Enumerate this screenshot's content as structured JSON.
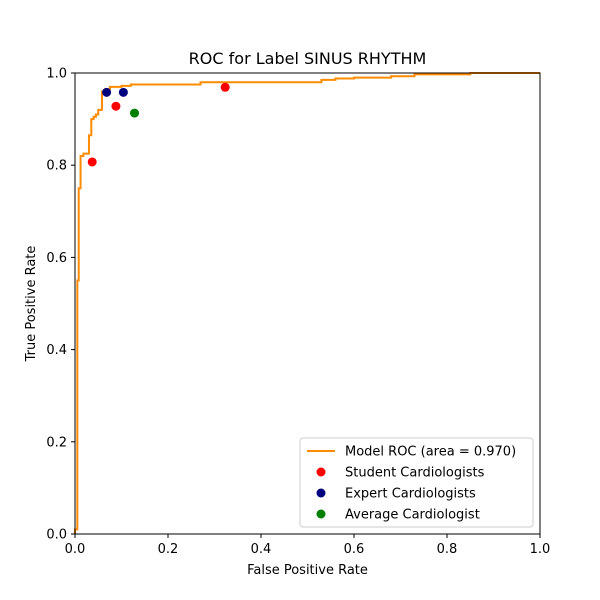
{
  "chart_data": {
    "type": "line",
    "title": "ROC for Label SINUS RHYTHM",
    "xlabel": "False Positive Rate",
    "ylabel": "True Positive Rate",
    "xlim": [
      0.0,
      1.0
    ],
    "ylim": [
      0.0,
      1.0
    ],
    "xticks": [
      "0.0",
      "0.2",
      "0.4",
      "0.6",
      "0.8",
      "1.0"
    ],
    "yticks": [
      "0.0",
      "0.2",
      "0.4",
      "0.6",
      "0.8",
      "1.0"
    ],
    "grid": false,
    "legend_position": "lower-right",
    "series": [
      {
        "name": "Model ROC (area = 0.970)",
        "kind": "line",
        "color": "#ff8c00",
        "x": [
          0.0,
          0.0,
          0.005,
          0.005,
          0.008,
          0.008,
          0.012,
          0.012,
          0.018,
          0.018,
          0.03,
          0.03,
          0.035,
          0.035,
          0.04,
          0.04,
          0.045,
          0.045,
          0.05,
          0.05,
          0.058,
          0.058,
          0.065,
          0.065,
          0.075,
          0.075,
          0.1,
          0.1,
          0.12,
          0.12,
          0.27,
          0.27,
          0.53,
          0.53,
          0.56,
          0.56,
          0.6,
          0.6,
          0.68,
          0.68,
          0.73,
          0.73,
          0.85,
          0.85,
          1.0
        ],
        "y": [
          0.0,
          0.01,
          0.01,
          0.55,
          0.55,
          0.75,
          0.75,
          0.82,
          0.82,
          0.825,
          0.825,
          0.865,
          0.865,
          0.9,
          0.9,
          0.905,
          0.905,
          0.91,
          0.91,
          0.92,
          0.92,
          0.96,
          0.96,
          0.965,
          0.965,
          0.97,
          0.97,
          0.972,
          0.972,
          0.975,
          0.975,
          0.98,
          0.98,
          0.985,
          0.985,
          0.988,
          0.988,
          0.99,
          0.99,
          0.993,
          0.993,
          0.997,
          0.997,
          1.0,
          1.0
        ]
      },
      {
        "name": "Student Cardiologists",
        "kind": "scatter",
        "color": "#ff0000",
        "x": [
          0.037,
          0.088,
          0.323
        ],
        "y": [
          0.807,
          0.928,
          0.969
        ]
      },
      {
        "name": "Expert Cardiologists",
        "kind": "scatter",
        "color": "#00007f",
        "x": [
          0.068,
          0.104
        ],
        "y": [
          0.958,
          0.958
        ]
      },
      {
        "name": "Average Cardiologist",
        "kind": "scatter",
        "color": "#007f00",
        "x": [
          0.128
        ],
        "y": [
          0.913
        ]
      }
    ]
  }
}
